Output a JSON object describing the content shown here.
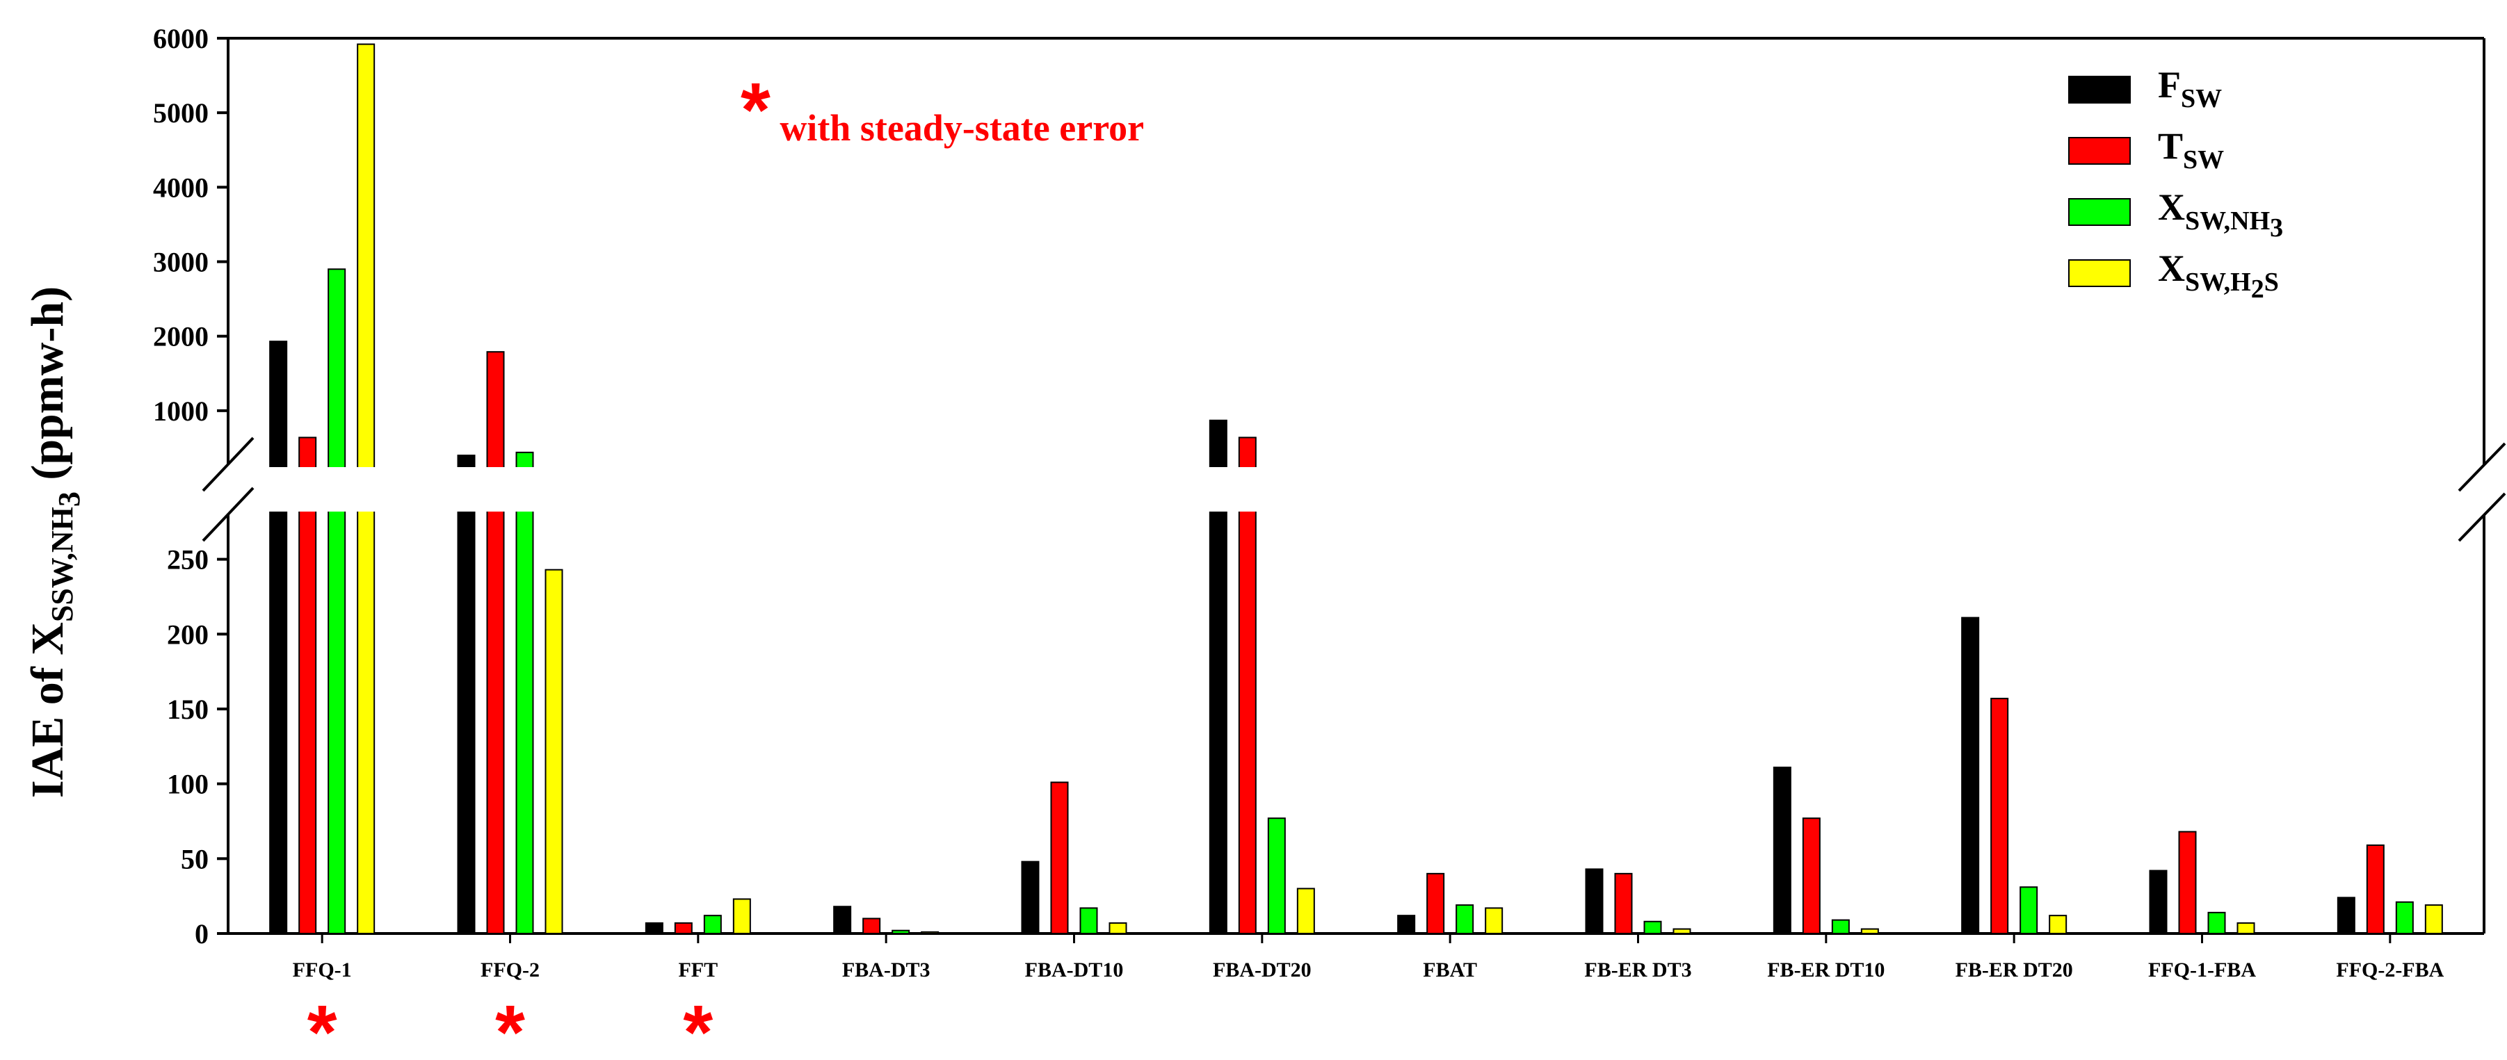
{
  "chart_data": {
    "type": "bar",
    "ylabel": {
      "main": "IAE of X",
      "sub1": "SSW,NH",
      "sub2": "3",
      "unit": " (ppmw-h)"
    },
    "note": {
      "symbol": "*",
      "text": " with steady-state error"
    },
    "categories": [
      "FFQ-1",
      "FFQ-2",
      "FFT",
      "FBA-DT3",
      "FBA-DT10",
      "FBA-DT20",
      "FBAT",
      "FB-ER DT3",
      "FB-ER DT10",
      "FB-ER DT20",
      "FFQ-1-FBA",
      "FFQ-2-FBA"
    ],
    "steady_state_error": [
      true,
      true,
      true,
      false,
      false,
      false,
      false,
      false,
      false,
      false,
      false,
      false
    ],
    "series": [
      {
        "name": {
          "main": "F",
          "sub1": "SW",
          "sub2": "",
          "sub3": ""
        },
        "color": "#000000",
        "values": [
          1930,
          400,
          7,
          18,
          48,
          870,
          12,
          43,
          111,
          211,
          42,
          24
        ]
      },
      {
        "name": {
          "main": "T",
          "sub1": "SW",
          "sub2": "",
          "sub3": ""
        },
        "color": "#ff0000",
        "values": [
          640,
          1790,
          7,
          10,
          101,
          640,
          40,
          40,
          77,
          157,
          68,
          59
        ]
      },
      {
        "name": {
          "main": "X",
          "sub1": "SW,NH",
          "sub2": "3",
          "sub3": ""
        },
        "color": "#00ff00",
        "values": [
          2900,
          440,
          12,
          2,
          17,
          77,
          19,
          8,
          9,
          31,
          14,
          21
        ]
      },
      {
        "name": {
          "main": "X",
          "sub1": "SW,H",
          "sub2": "2",
          "sub3": "S"
        },
        "color": "#ffff00",
        "values": [
          5920,
          243,
          23,
          1,
          7,
          30,
          17,
          3,
          3,
          12,
          7,
          19
        ]
      }
    ],
    "y_axis_break": true,
    "lower_segment": {
      "ylim": [
        0,
        280
      ],
      "ticks": [
        0,
        50,
        100,
        150,
        200,
        250
      ]
    },
    "upper_segment": {
      "ylim": [
        280,
        6000
      ],
      "ticks": [
        1000,
        2000,
        3000,
        4000,
        5000,
        6000
      ]
    },
    "legend_position": "top-right",
    "grid": false
  }
}
